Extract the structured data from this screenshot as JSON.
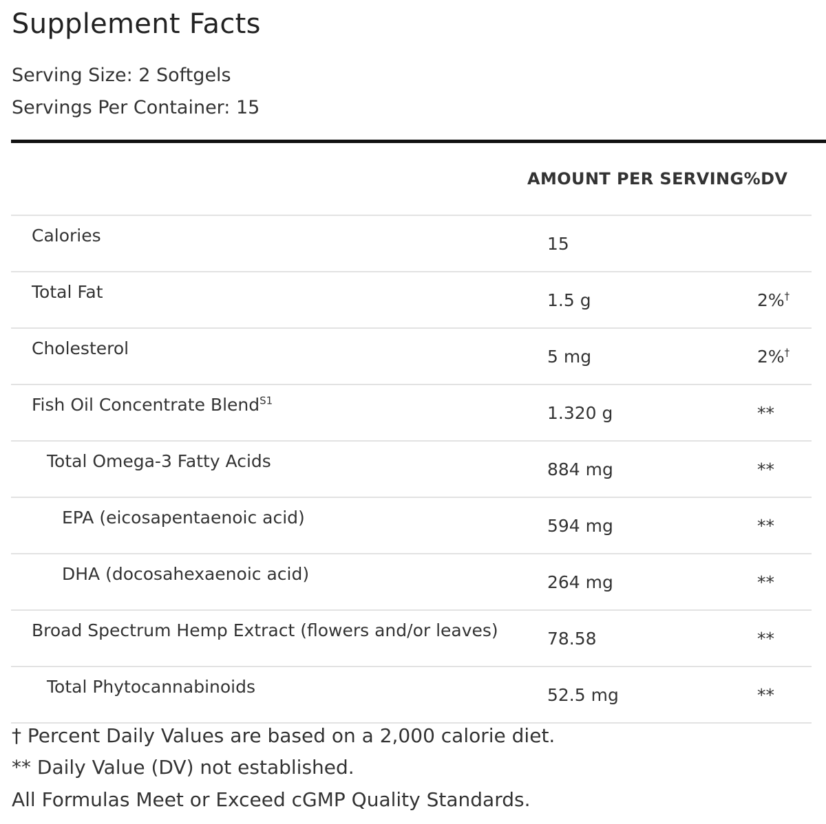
{
  "title": "Supplement Facts",
  "serving_size": "Serving Size: 2 Softgels",
  "servings_per_container": "Servings Per Container: 15",
  "table_header": "AMOUNT PER SERVING%DV",
  "rows": [
    {
      "name": "Calories",
      "name_sup": "",
      "amount": "15",
      "dv": "",
      "dv_sup": ""
    },
    {
      "name": "Total Fat",
      "name_sup": "",
      "amount": "1.5 g",
      "dv": "2%",
      "dv_sup": "†"
    },
    {
      "name": "Cholesterol",
      "name_sup": "",
      "amount": "5 mg",
      "dv": "2%",
      "dv_sup": "†"
    },
    {
      "name": "Fish Oil Concentrate Blend",
      "name_sup": "S1",
      "amount": "1.320 g",
      "dv": "**",
      "dv_sup": ""
    },
    {
      "name": "Total Omega-3 Fatty Acids",
      "name_sup": "",
      "amount": "884 mg",
      "dv": "**",
      "dv_sup": ""
    },
    {
      "name": "EPA (eicosapentaenoic acid)",
      "name_sup": "",
      "amount": "594 mg",
      "dv": "**",
      "dv_sup": ""
    },
    {
      "name": "DHA (docosahexaenoic acid)",
      "name_sup": "",
      "amount": "264 mg",
      "dv": "**",
      "dv_sup": ""
    },
    {
      "name": "Broad Spectrum Hemp Extract (flowers and/or leaves)",
      "name_sup": "",
      "amount": "78.58",
      "dv": "**",
      "dv_sup": ""
    },
    {
      "name": "Total Phytocannabinoids",
      "name_sup": "",
      "amount": "52.5 mg",
      "dv": "**",
      "dv_sup": ""
    }
  ],
  "footnotes": [
    "† Percent Daily Values are based on a 2,000 calorie diet.",
    "** Daily Value (DV) not established.",
    "All Formulas Meet or Exceed cGMP Quality Standards."
  ]
}
